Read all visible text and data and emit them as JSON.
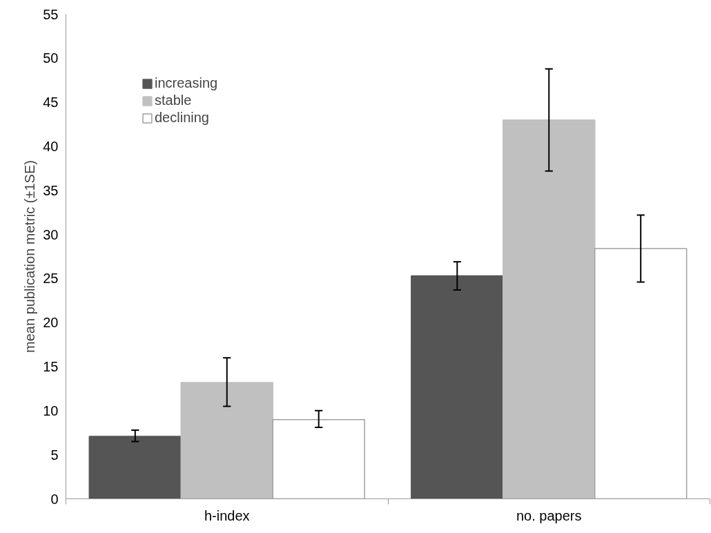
{
  "chart_data": {
    "type": "bar",
    "ylabel": "mean publication metric (±1SE)",
    "categories": [
      "h-index",
      "no. papers"
    ],
    "series": [
      {
        "name": "increasing",
        "color": "#555555",
        "values": [
          7.1,
          25.3
        ],
        "errors": [
          [
            6.5,
            7.8
          ],
          [
            23.7,
            26.9
          ]
        ]
      },
      {
        "name": "stable",
        "color": "#c0c0c0",
        "values": [
          13.2,
          43.0
        ],
        "errors": [
          [
            10.5,
            16.0
          ],
          [
            37.2,
            48.8
          ]
        ]
      },
      {
        "name": "declining",
        "color": "#ffffff",
        "values": [
          9.0,
          28.4
        ],
        "errors": [
          [
            8.1,
            10.0
          ],
          [
            24.6,
            32.2
          ]
        ]
      }
    ],
    "ylim": [
      0,
      55
    ],
    "yticks": [
      0,
      5,
      10,
      15,
      20,
      25,
      30,
      35,
      40,
      45,
      50,
      55
    ],
    "grid": false,
    "legend": "top left"
  }
}
